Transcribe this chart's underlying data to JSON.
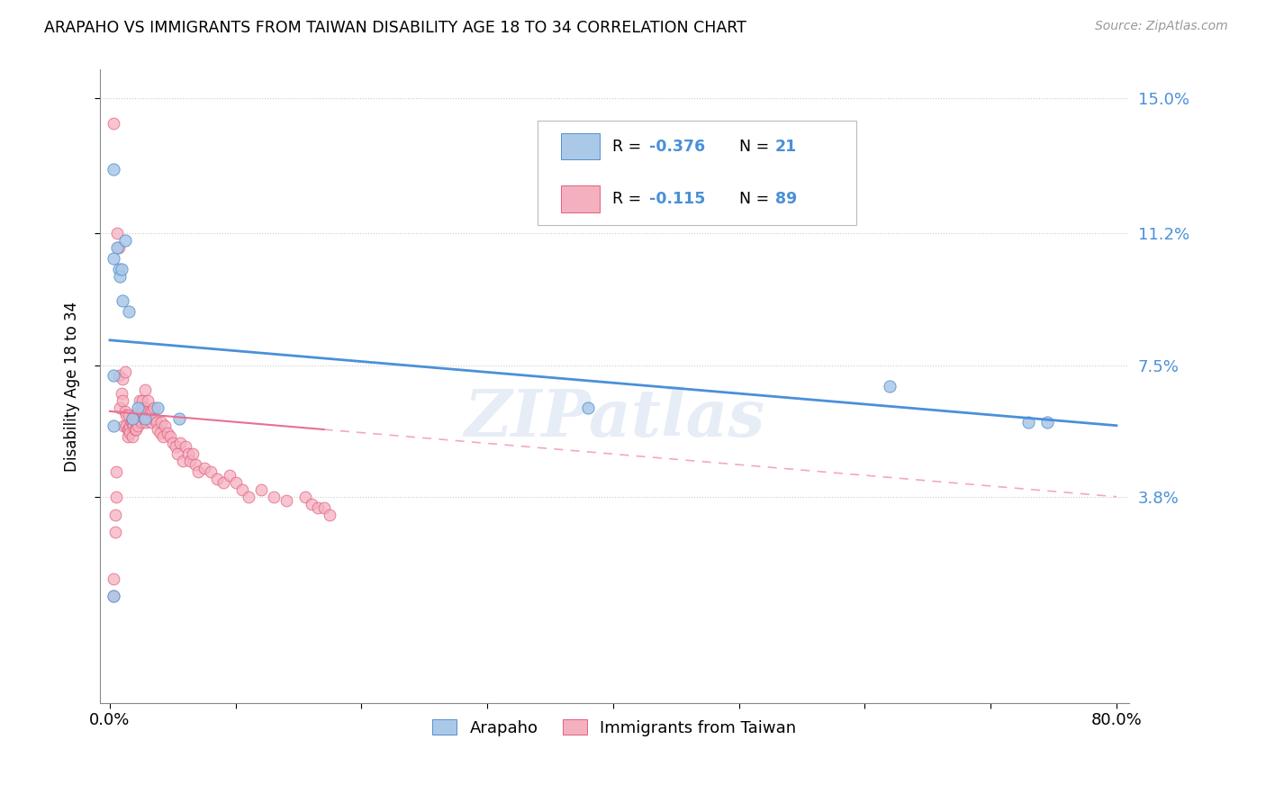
{
  "title": "ARAPAHO VS IMMIGRANTS FROM TAIWAN DISABILITY AGE 18 TO 34 CORRELATION CHART",
  "source": "Source: ZipAtlas.com",
  "ylabel": "Disability Age 18 to 34",
  "xmin": 0.0,
  "xmax": 0.8,
  "ymin": 0.0,
  "ymax": 0.15,
  "ytick_vals": [
    0.038,
    0.075,
    0.112,
    0.15
  ],
  "ytick_labels": [
    "3.8%",
    "7.5%",
    "11.2%",
    "15.0%"
  ],
  "xtick_vals": [
    0.0,
    0.1,
    0.2,
    0.3,
    0.4,
    0.5,
    0.6,
    0.7,
    0.8
  ],
  "xtick_labels": [
    "0.0%",
    "",
    "",
    "",
    "",
    "",
    "",
    "",
    "80.0%"
  ],
  "watermark": "ZIPatlas",
  "arapaho_color": "#aac8e8",
  "taiwan_color": "#f5b0c0",
  "arapaho_edge_color": "#5590cc",
  "taiwan_edge_color": "#e06080",
  "arapaho_line_color": "#4a90d9",
  "taiwan_line_color": "#e87090",
  "legend_R_arapaho": "-0.376",
  "legend_N_arapaho": "21",
  "legend_R_taiwan": "-0.115",
  "legend_N_taiwan": "89",
  "arapaho_line_y0": 0.082,
  "arapaho_line_y1": 0.058,
  "taiwan_line_y0": 0.062,
  "taiwan_line_y1": 0.038,
  "arapaho_x": [
    0.003,
    0.003,
    0.006,
    0.007,
    0.008,
    0.009,
    0.01,
    0.012,
    0.015,
    0.018,
    0.022,
    0.028,
    0.038,
    0.055,
    0.38,
    0.62,
    0.73,
    0.745,
    0.003,
    0.003,
    0.003
  ],
  "arapaho_y": [
    0.13,
    0.105,
    0.108,
    0.102,
    0.1,
    0.102,
    0.093,
    0.11,
    0.09,
    0.06,
    0.063,
    0.06,
    0.063,
    0.06,
    0.063,
    0.069,
    0.059,
    0.059,
    0.058,
    0.01,
    0.072
  ],
  "taiwan_x": [
    0.003,
    0.006,
    0.007,
    0.007,
    0.008,
    0.009,
    0.01,
    0.01,
    0.011,
    0.012,
    0.012,
    0.013,
    0.013,
    0.014,
    0.014,
    0.015,
    0.015,
    0.016,
    0.016,
    0.017,
    0.018,
    0.018,
    0.019,
    0.02,
    0.02,
    0.021,
    0.021,
    0.022,
    0.022,
    0.023,
    0.024,
    0.024,
    0.025,
    0.025,
    0.026,
    0.026,
    0.027,
    0.028,
    0.028,
    0.029,
    0.03,
    0.03,
    0.031,
    0.032,
    0.033,
    0.034,
    0.035,
    0.036,
    0.037,
    0.038,
    0.04,
    0.041,
    0.042,
    0.044,
    0.046,
    0.048,
    0.05,
    0.052,
    0.054,
    0.056,
    0.058,
    0.06,
    0.062,
    0.064,
    0.066,
    0.068,
    0.07,
    0.075,
    0.08,
    0.085,
    0.09,
    0.095,
    0.1,
    0.105,
    0.11,
    0.12,
    0.13,
    0.14,
    0.155,
    0.16,
    0.165,
    0.17,
    0.175,
    0.005,
    0.005,
    0.004,
    0.004,
    0.003,
    0.003
  ],
  "taiwan_y": [
    0.143,
    0.112,
    0.108,
    0.072,
    0.063,
    0.067,
    0.071,
    0.065,
    0.058,
    0.062,
    0.073,
    0.061,
    0.058,
    0.055,
    0.057,
    0.061,
    0.057,
    0.058,
    0.056,
    0.059,
    0.055,
    0.059,
    0.058,
    0.057,
    0.061,
    0.059,
    0.057,
    0.058,
    0.06,
    0.062,
    0.061,
    0.065,
    0.063,
    0.059,
    0.065,
    0.062,
    0.06,
    0.063,
    0.068,
    0.059,
    0.062,
    0.065,
    0.06,
    0.062,
    0.059,
    0.062,
    0.063,
    0.06,
    0.059,
    0.057,
    0.056,
    0.059,
    0.055,
    0.058,
    0.056,
    0.055,
    0.053,
    0.052,
    0.05,
    0.053,
    0.048,
    0.052,
    0.05,
    0.048,
    0.05,
    0.047,
    0.045,
    0.046,
    0.045,
    0.043,
    0.042,
    0.044,
    0.042,
    0.04,
    0.038,
    0.04,
    0.038,
    0.037,
    0.038,
    0.036,
    0.035,
    0.035,
    0.033,
    0.045,
    0.038,
    0.033,
    0.028,
    0.015,
    0.01
  ]
}
